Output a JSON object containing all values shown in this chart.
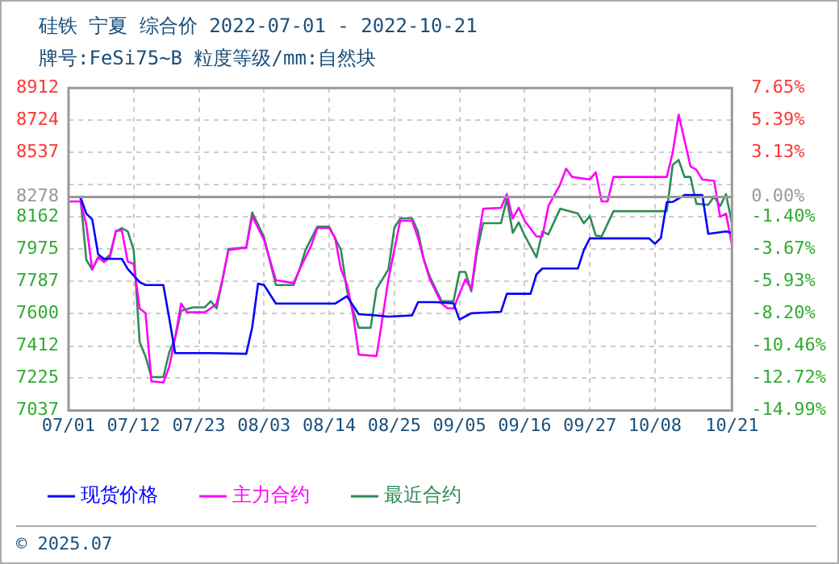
{
  "chart_data": {
    "type": "line",
    "title": "硅铁 宁夏 综合价 2022-07-01 - 2022-10-21",
    "subtitle": "牌号:FeSi75~B 粒度等级/mm:自然块",
    "annotations": [
      "© 2025.07"
    ],
    "xlim": [
      "2022-07-01",
      "2022-10-21"
    ],
    "xticks": [
      {
        "value": "2022-07-01",
        "label": "07/01"
      },
      {
        "value": "2022-07-12",
        "label": "07/12"
      },
      {
        "value": "2022-07-23",
        "label": "07/23"
      },
      {
        "value": "2022-08-03",
        "label": "08/03"
      },
      {
        "value": "2022-08-14",
        "label": "08/14"
      },
      {
        "value": "2022-08-25",
        "label": "08/25"
      },
      {
        "value": "2022-09-05",
        "label": "09/05"
      },
      {
        "value": "2022-09-16",
        "label": "09/16"
      },
      {
        "value": "2022-09-27",
        "label": "09/27"
      },
      {
        "value": "2022-10-08",
        "label": "10/08"
      },
      {
        "value": "2022-10-21",
        "label": "10/21"
      }
    ],
    "ylim": [
      7037,
      8912
    ],
    "yticks": [
      7037,
      7225,
      7412,
      7600,
      7787,
      7975,
      8162,
      8278,
      {
        "value": 8350,
        "label": null
      },
      8537,
      8724,
      8912
    ],
    "y2lim": [
      -14.99,
      7.65
    ],
    "y2ticks": [
      {
        "value": -14.99,
        "label": "-14.99%"
      },
      {
        "value": -12.72,
        "label": "-12.72%"
      },
      {
        "value": -10.46,
        "label": "-10.46%"
      },
      {
        "value": -8.2,
        "label": "-8.20%"
      },
      {
        "value": -5.93,
        "label": "-5.93%"
      },
      {
        "value": -3.67,
        "label": "-3.67%"
      },
      {
        "value": -1.4,
        "label": "-1.40%"
      },
      {
        "value": 0,
        "label": "0.00%"
      },
      {
        "value": 3.13,
        "label": "3.13%"
      },
      {
        "value": 5.39,
        "label": "5.39%"
      },
      {
        "value": 7.65,
        "label": "7.65%"
      }
    ],
    "ref_lines": [
      {
        "axis": "y",
        "value": 8278,
        "color": "#999999"
      }
    ],
    "grid": true,
    "legend": "bottom",
    "marker": "none",
    "series": [
      {
        "name": "现货价格",
        "color": "#0000ff",
        "x": [
          "2022-07-01",
          "2022-07-03",
          "2022-07-04",
          "2022-07-05",
          "2022-07-06",
          "2022-07-07",
          "2022-07-10",
          "2022-07-11",
          "2022-07-13",
          "2022-07-14",
          "2022-07-17",
          "2022-07-18",
          "2022-07-19",
          "2022-07-25",
          "2022-07-31",
          "2022-08-01",
          "2022-08-02",
          "2022-08-03",
          "2022-08-05",
          "2022-08-15",
          "2022-08-17",
          "2022-08-19",
          "2022-08-22",
          "2022-08-24",
          "2022-08-28",
          "2022-08-29",
          "2022-09-01",
          "2022-09-04",
          "2022-09-05",
          "2022-09-07",
          "2022-09-12",
          "2022-09-13",
          "2022-09-17",
          "2022-09-18",
          "2022-09-19",
          "2022-09-25",
          "2022-09-26",
          "2022-09-27",
          "2022-10-07",
          "2022-10-08",
          "2022-10-09",
          "2022-10-10",
          "2022-10-11",
          "2022-10-13",
          "2022-10-16",
          "2022-10-17",
          "2022-10-20",
          "2022-10-21"
        ],
        "values": [
          8278,
          8278,
          8182,
          8148,
          7945,
          7919,
          7919,
          7860,
          7784,
          7767,
          7767,
          7574,
          7371,
          7371,
          7367,
          7520,
          7775,
          7767,
          7659,
          7659,
          7702,
          7597,
          7590,
          7583,
          7590,
          7667,
          7667,
          7660,
          7566,
          7603,
          7611,
          7716,
          7716,
          7829,
          7863,
          7863,
          7970,
          8038,
          8038,
          8007,
          8040,
          8248,
          8250,
          8290,
          8290,
          8064,
          8078,
          8070
        ]
      },
      {
        "name": "主力合约",
        "color": "#ff00ff",
        "x": [
          "2022-07-01",
          "2022-07-03",
          "2022-07-04",
          "2022-07-05",
          "2022-07-06",
          "2022-07-07",
          "2022-07-08",
          "2022-07-09",
          "2022-07-10",
          "2022-07-11",
          "2022-07-12",
          "2022-07-13",
          "2022-07-14",
          "2022-07-15",
          "2022-07-17",
          "2022-07-18",
          "2022-07-19",
          "2022-07-20",
          "2022-07-21",
          "2022-07-24",
          "2022-07-25",
          "2022-07-26",
          "2022-07-27",
          "2022-07-28",
          "2022-07-31",
          "2022-08-01",
          "2022-08-03",
          "2022-08-05",
          "2022-08-08",
          "2022-08-09",
          "2022-08-11",
          "2022-08-12",
          "2022-08-14",
          "2022-08-15",
          "2022-08-16",
          "2022-08-17",
          "2022-08-18",
          "2022-08-19",
          "2022-08-22",
          "2022-08-23",
          "2022-08-24",
          "2022-08-25",
          "2022-08-26",
          "2022-08-28",
          "2022-08-29",
          "2022-08-30",
          "2022-08-31",
          "2022-09-02",
          "2022-09-03",
          "2022-09-04",
          "2022-09-06",
          "2022-09-07",
          "2022-09-08",
          "2022-09-09",
          "2022-09-12",
          "2022-09-13",
          "2022-09-14",
          "2022-09-15",
          "2022-09-16",
          "2022-09-18",
          "2022-09-19",
          "2022-09-20",
          "2022-09-22",
          "2022-09-23",
          "2022-09-24",
          "2022-09-27",
          "2022-09-28",
          "2022-09-29",
          "2022-09-30",
          "2022-10-01",
          "2022-10-10",
          "2022-10-11",
          "2022-10-12",
          "2022-10-13",
          "2022-10-14",
          "2022-10-15",
          "2022-10-16",
          "2022-10-18",
          "2022-10-19",
          "2022-10-20",
          "2022-10-21"
        ],
        "values": [
          8253,
          8253,
          8115,
          7857,
          7928,
          7900,
          7930,
          8083,
          8083,
          7902,
          7890,
          7631,
          7603,
          7207,
          7200,
          7292,
          7461,
          7659,
          7608,
          7608,
          7631,
          7659,
          7800,
          7970,
          7985,
          8168,
          8030,
          7795,
          7778,
          7857,
          7998,
          8098,
          8098,
          8041,
          7857,
          7772,
          7603,
          7362,
          7354,
          7574,
          7800,
          7970,
          8140,
          8140,
          8041,
          7913,
          7800,
          7659,
          7631,
          7631,
          7800,
          7744,
          7998,
          8210,
          8215,
          8295,
          8154,
          8216,
          8140,
          8049,
          8049,
          8225,
          8352,
          8443,
          8395,
          8380,
          8422,
          8253,
          8253,
          8395,
          8395,
          8536,
          8757,
          8607,
          8456,
          8437,
          8380,
          8372,
          8163,
          8182,
          8000
        ]
      },
      {
        "name": "最近合约",
        "color": "#2e8b57",
        "x": [
          "2022-07-01",
          "2022-07-03",
          "2022-07-04",
          "2022-07-05",
          "2022-07-06",
          "2022-07-07",
          "2022-07-08",
          "2022-07-09",
          "2022-07-10",
          "2022-07-11",
          "2022-07-12",
          "2022-07-13",
          "2022-07-14",
          "2022-07-15",
          "2022-07-17",
          "2022-07-18",
          "2022-07-19",
          "2022-07-20",
          "2022-07-22",
          "2022-07-24",
          "2022-07-25",
          "2022-07-26",
          "2022-07-27",
          "2022-07-28",
          "2022-07-31",
          "2022-08-01",
          "2022-08-03",
          "2022-08-05",
          "2022-08-08",
          "2022-08-09",
          "2022-08-10",
          "2022-08-12",
          "2022-08-14",
          "2022-08-16",
          "2022-08-17",
          "2022-08-19",
          "2022-08-21",
          "2022-08-22",
          "2022-08-24",
          "2022-08-25",
          "2022-08-26",
          "2022-08-28",
          "2022-08-29",
          "2022-08-30",
          "2022-08-31",
          "2022-09-02",
          "2022-09-04",
          "2022-09-05",
          "2022-09-06",
          "2022-09-07",
          "2022-09-08",
          "2022-09-09",
          "2022-09-12",
          "2022-09-13",
          "2022-09-14",
          "2022-09-15",
          "2022-09-16",
          "2022-09-18",
          "2022-09-19",
          "2022-09-20",
          "2022-09-22",
          "2022-09-25",
          "2022-09-26",
          "2022-09-27",
          "2022-09-28",
          "2022-09-29",
          "2022-10-01",
          "2022-10-10",
          "2022-10-11",
          "2022-10-12",
          "2022-10-13",
          "2022-10-14",
          "2022-10-15",
          "2022-10-17",
          "2022-10-18",
          "2022-10-19",
          "2022-10-20",
          "2022-10-21"
        ],
        "values": [
          8278,
          8278,
          7913,
          7857,
          7928,
          7913,
          7942,
          8078,
          8098,
          8078,
          7970,
          7436,
          7351,
          7232,
          7232,
          7376,
          7461,
          7617,
          7637,
          7637,
          7673,
          7631,
          7800,
          7976,
          7985,
          8188,
          8046,
          7767,
          7767,
          7857,
          7970,
          8106,
          8106,
          7970,
          7733,
          7518,
          7518,
          7744,
          7857,
          8098,
          8154,
          8154,
          8078,
          7913,
          7815,
          7673,
          7673,
          7843,
          7843,
          7730,
          7970,
          8126,
          8126,
          8267,
          8070,
          8131,
          8055,
          7928,
          8078,
          8061,
          8210,
          8182,
          8126,
          8168,
          8055,
          8049,
          8196,
          8196,
          8465,
          8494,
          8395,
          8395,
          8239,
          8233,
          8282,
          8225,
          8295,
          8126
        ]
      }
    ]
  }
}
